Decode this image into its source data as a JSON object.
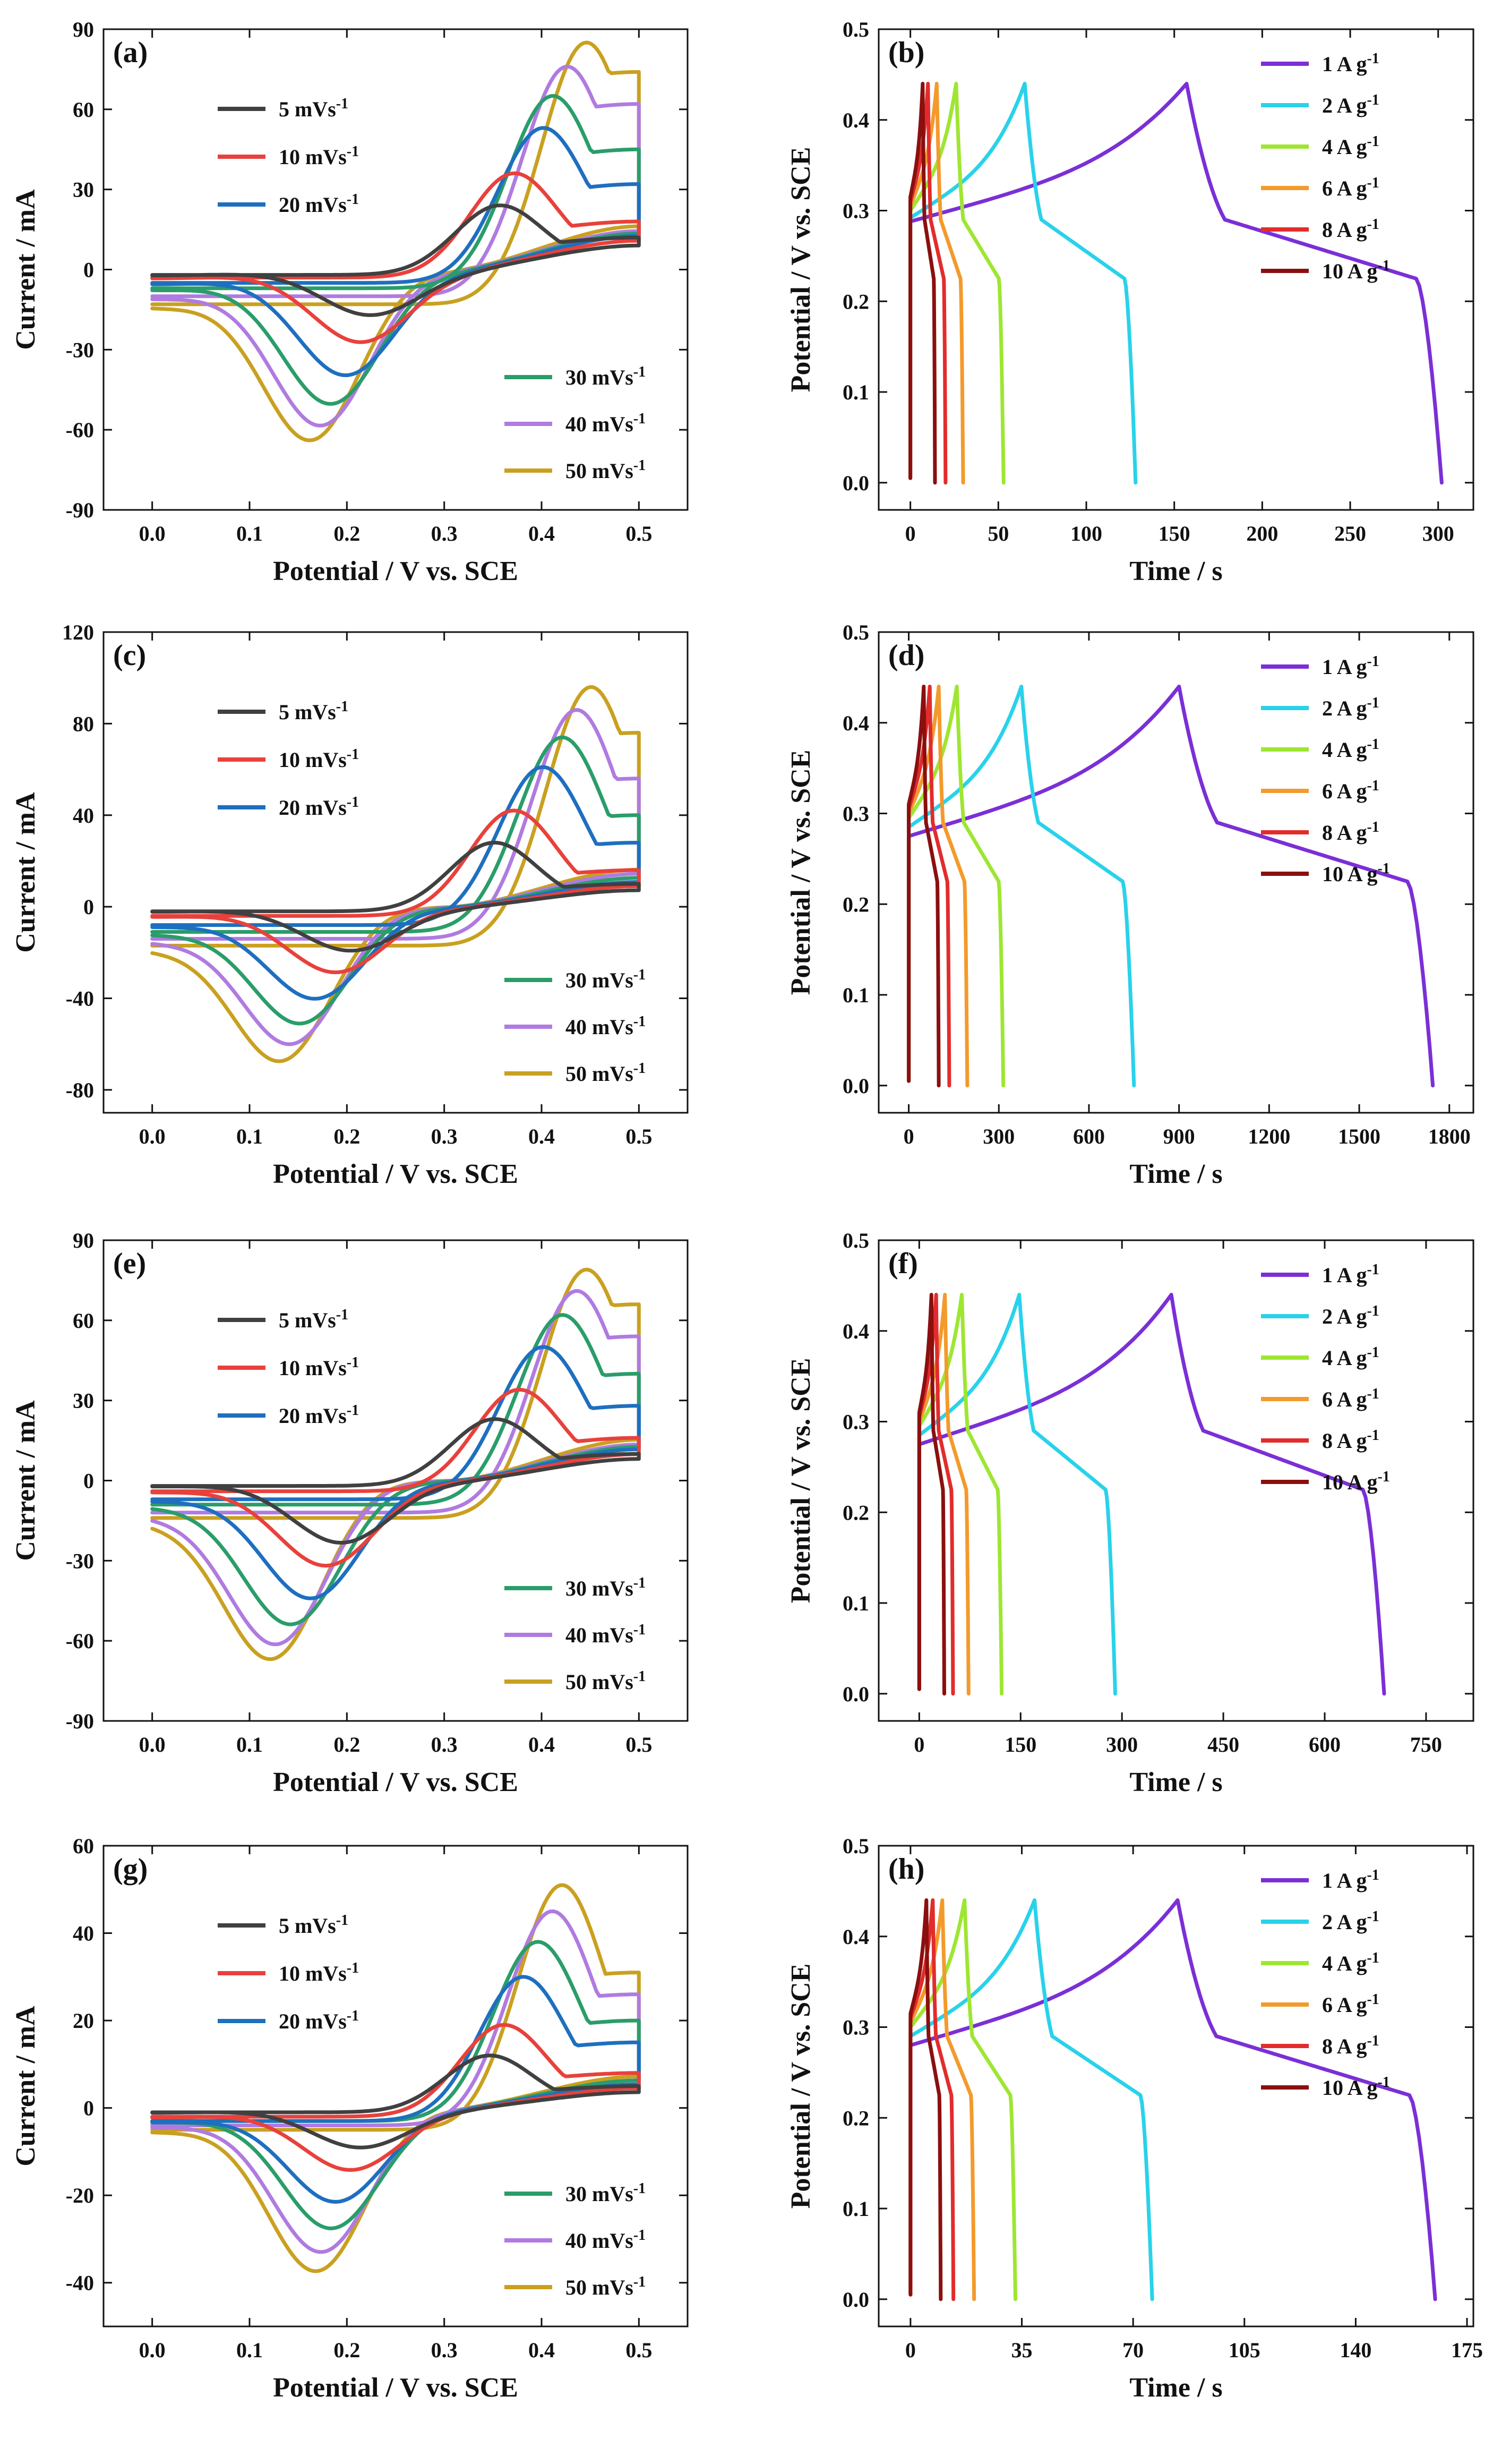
{
  "chart_data": [
    {
      "panel": "(a)",
      "type": "line",
      "variant": "cv",
      "xlabel": "Potential / V vs. SCE",
      "ylabel": "Current / mA",
      "xlim": [
        -0.05,
        0.55
      ],
      "ylim": [
        -90,
        90
      ],
      "xticks": [
        0.0,
        0.1,
        0.2,
        0.3,
        0.4,
        0.5
      ],
      "yticks": [
        -90,
        -60,
        -30,
        0,
        30,
        60,
        90
      ],
      "xtick_labels": [
        "0.0",
        "0.1",
        "0.2",
        "0.3",
        "0.4",
        "0.5"
      ],
      "ytick_labels": [
        "-90",
        "-60",
        "-30",
        "0",
        "30",
        "60",
        "90"
      ],
      "legend_groups": [
        [
          "5 mVs-1",
          "10 mVs-1",
          "20 mVs-1"
        ],
        [
          "30 mVs-1",
          "40 mVs-1",
          "50 mVs-1"
        ]
      ],
      "legend_placement": [
        "upper-left",
        "lower-right"
      ],
      "series": [
        {
          "name": "5 mVs-1",
          "color": "#404040",
          "end_high": 12,
          "end_low": 10,
          "v_start": -2,
          "ox_peak_x": 0.355,
          "ox_peak_y": 24,
          "red_peak_x": 0.225,
          "red_peak_y": -19
        },
        {
          "name": "10 mVs-1",
          "color": "#e8413c",
          "end_high": 18,
          "end_low": 12,
          "v_start": -3,
          "ox_peak_x": 0.37,
          "ox_peak_y": 36,
          "red_peak_x": 0.215,
          "red_peak_y": -30
        },
        {
          "name": "20 mVs-1",
          "color": "#1e6fbf",
          "end_high": 32,
          "end_low": 14,
          "v_start": -5,
          "ox_peak_x": 0.4,
          "ox_peak_y": 53,
          "red_peak_x": 0.2,
          "red_peak_y": -44
        },
        {
          "name": "30 mVs-1",
          "color": "#2a9d6a",
          "end_high": 45,
          "end_low": 15,
          "v_start": -7,
          "ox_peak_x": 0.41,
          "ox_peak_y": 65,
          "red_peak_x": 0.185,
          "red_peak_y": -56
        },
        {
          "name": "40 mVs-1",
          "color": "#b07be0",
          "end_high": 62,
          "end_low": 16,
          "v_start": -10,
          "ox_peak_x": 0.425,
          "ox_peak_y": 76,
          "red_peak_x": 0.175,
          "red_peak_y": -66
        },
        {
          "name": "50 mVs-1",
          "color": "#c9a020",
          "end_high": 74,
          "end_low": 18,
          "v_start": -13,
          "ox_peak_x": 0.445,
          "ox_peak_y": 85,
          "red_peak_x": 0.165,
          "red_peak_y": -73
        }
      ]
    },
    {
      "panel": "(b)",
      "type": "line",
      "variant": "gcd",
      "xlabel": "Time / s",
      "ylabel": "Potential / V vs. SCE",
      "xlim": [
        -18,
        320
      ],
      "ylim": [
        -0.03,
        0.5
      ],
      "xticks": [
        0,
        50,
        100,
        150,
        200,
        250,
        300
      ],
      "yticks": [
        0.0,
        0.1,
        0.2,
        0.3,
        0.4,
        0.5
      ],
      "xtick_labels": [
        "0",
        "50",
        "100",
        "150",
        "200",
        "250",
        "300"
      ],
      "ytick_labels": [
        "0.0",
        "0.1",
        "0.2",
        "0.3",
        "0.4",
        "0.5"
      ],
      "legend_placement": "upper-right",
      "series": [
        {
          "name": "1 A g-1",
          "color": "#7b2fd6",
          "t_peak": 157,
          "t_end": 302,
          "v_start": 0.288
        },
        {
          "name": "2 A g-1",
          "color": "#29d2ea",
          "t_peak": 65,
          "t_end": 128,
          "v_start": 0.292
        },
        {
          "name": "4 A g-1",
          "color": "#9ee632",
          "t_peak": 26,
          "t_end": 53,
          "v_start": 0.3
        },
        {
          "name": "6 A g-1",
          "color": "#f39a2c",
          "t_peak": 15,
          "t_end": 30,
          "v_start": 0.305
        },
        {
          "name": "8 A g-1",
          "color": "#e22c2c",
          "t_peak": 10,
          "t_end": 20,
          "v_start": 0.31
        },
        {
          "name": "10 A g-1",
          "color": "#8b0f0f",
          "t_peak": 7,
          "t_end": 14,
          "v_start": 0.315
        }
      ]
    },
    {
      "panel": "(c)",
      "type": "line",
      "variant": "cv",
      "xlabel": "Potential / V vs. SCE",
      "ylabel": "Current / mA",
      "xlim": [
        -0.05,
        0.55
      ],
      "ylim": [
        -90,
        120
      ],
      "xticks": [
        0.0,
        0.1,
        0.2,
        0.3,
        0.4,
        0.5
      ],
      "yticks": [
        -80,
        -40,
        0,
        40,
        80,
        120
      ],
      "xtick_labels": [
        "0.0",
        "0.1",
        "0.2",
        "0.3",
        "0.4",
        "0.5"
      ],
      "ytick_labels": [
        "-80",
        "-40",
        "0",
        "40",
        "80",
        "120"
      ],
      "legend_groups": [
        [
          "5 mVs-1",
          "10 mVs-1",
          "20 mVs-1"
        ],
        [
          "30 mVs-1",
          "40 mVs-1",
          "50 mVs-1"
        ]
      ],
      "legend_placement": [
        "upper-left",
        "lower-right"
      ],
      "series": [
        {
          "name": "5 mVs-1",
          "color": "#404040",
          "end_high": 10,
          "end_low": 8,
          "v_start": -2,
          "ox_peak_x": 0.35,
          "ox_peak_y": 28,
          "red_peak_x": 0.205,
          "red_peak_y": -21
        },
        {
          "name": "10 mVs-1",
          "color": "#e8413c",
          "end_high": 16,
          "end_low": 10,
          "v_start": -4,
          "ox_peak_x": 0.37,
          "ox_peak_y": 42,
          "red_peak_x": 0.19,
          "red_peak_y": -32
        },
        {
          "name": "20 mVs-1",
          "color": "#1e6fbf",
          "end_high": 28,
          "end_low": 12,
          "v_start": -8,
          "ox_peak_x": 0.4,
          "ox_peak_y": 61,
          "red_peak_x": 0.17,
          "red_peak_y": -46
        },
        {
          "name": "30 mVs-1",
          "color": "#2a9d6a",
          "end_high": 40,
          "end_low": 14,
          "v_start": -11,
          "ox_peak_x": 0.42,
          "ox_peak_y": 74,
          "red_peak_x": 0.155,
          "red_peak_y": -58
        },
        {
          "name": "40 mVs-1",
          "color": "#b07be0",
          "end_high": 56,
          "end_low": 16,
          "v_start": -14,
          "ox_peak_x": 0.435,
          "ox_peak_y": 86,
          "red_peak_x": 0.145,
          "red_peak_y": -68
        },
        {
          "name": "50 mVs-1",
          "color": "#c9a020",
          "end_high": 76,
          "end_low": 18,
          "v_start": -17,
          "ox_peak_x": 0.45,
          "ox_peak_y": 96,
          "red_peak_x": 0.135,
          "red_peak_y": -76
        }
      ]
    },
    {
      "panel": "(d)",
      "type": "line",
      "variant": "gcd",
      "xlabel": "Time / s",
      "ylabel": "Potential / V vs. SCE",
      "xlim": [
        -100,
        1880
      ],
      "ylim": [
        -0.03,
        0.5
      ],
      "xticks": [
        0,
        300,
        600,
        900,
        1200,
        1500,
        1800
      ],
      "yticks": [
        0.0,
        0.1,
        0.2,
        0.3,
        0.4,
        0.5
      ],
      "xtick_labels": [
        "0",
        "300",
        "600",
        "900",
        "1200",
        "1500",
        "1800"
      ],
      "ytick_labels": [
        "0.0",
        "0.1",
        "0.2",
        "0.3",
        "0.4",
        "0.5"
      ],
      "legend_placement": "upper-right",
      "series": [
        {
          "name": "1 A g-1",
          "color": "#7b2fd6",
          "t_peak": 900,
          "t_end": 1745,
          "v_start": 0.275
        },
        {
          "name": "2 A g-1",
          "color": "#29d2ea",
          "t_peak": 375,
          "t_end": 750,
          "v_start": 0.285
        },
        {
          "name": "4 A g-1",
          "color": "#9ee632",
          "t_peak": 160,
          "t_end": 315,
          "v_start": 0.295
        },
        {
          "name": "6 A g-1",
          "color": "#f39a2c",
          "t_peak": 100,
          "t_end": 195,
          "v_start": 0.3
        },
        {
          "name": "8 A g-1",
          "color": "#e22c2c",
          "t_peak": 70,
          "t_end": 135,
          "v_start": 0.305
        },
        {
          "name": "10 A g-1",
          "color": "#8b0f0f",
          "t_peak": 50,
          "t_end": 100,
          "v_start": 0.31
        }
      ]
    },
    {
      "panel": "(e)",
      "type": "line",
      "variant": "cv",
      "xlabel": "Potential / V vs. SCE",
      "ylabel": "Current / mA",
      "xlim": [
        -0.05,
        0.55
      ],
      "ylim": [
        -90,
        90
      ],
      "xticks": [
        0.0,
        0.1,
        0.2,
        0.3,
        0.4,
        0.5
      ],
      "yticks": [
        -90,
        -60,
        -30,
        0,
        30,
        60,
        90
      ],
      "xtick_labels": [
        "0.0",
        "0.1",
        "0.2",
        "0.3",
        "0.4",
        "0.5"
      ],
      "ytick_labels": [
        "-90",
        "-60",
        "-30",
        "0",
        "30",
        "60",
        "90"
      ],
      "legend_groups": [
        [
          "5 mVs-1",
          "10 mVs-1",
          "20 mVs-1"
        ],
        [
          "30 mVs-1",
          "40 mVs-1",
          "50 mVs-1"
        ]
      ],
      "legend_placement": [
        "upper-left",
        "lower-right"
      ],
      "series": [
        {
          "name": "5 mVs-1",
          "color": "#404040",
          "end_high": 10,
          "end_low": 9,
          "v_start": -2,
          "ox_peak_x": 0.35,
          "ox_peak_y": 23,
          "red_peak_x": 0.195,
          "red_peak_y": -25
        },
        {
          "name": "10 mVs-1",
          "color": "#e8413c",
          "end_high": 16,
          "end_low": 11,
          "v_start": -4,
          "ox_peak_x": 0.375,
          "ox_peak_y": 34,
          "red_peak_x": 0.18,
          "red_peak_y": -35
        },
        {
          "name": "20 mVs-1",
          "color": "#1e6fbf",
          "end_high": 28,
          "end_low": 13,
          "v_start": -7,
          "ox_peak_x": 0.4,
          "ox_peak_y": 50,
          "red_peak_x": 0.165,
          "red_peak_y": -49
        },
        {
          "name": "30 mVs-1",
          "color": "#2a9d6a",
          "end_high": 40,
          "end_low": 14,
          "v_start": -9,
          "ox_peak_x": 0.42,
          "ox_peak_y": 62,
          "red_peak_x": 0.145,
          "red_peak_y": -59
        },
        {
          "name": "40 mVs-1",
          "color": "#b07be0",
          "end_high": 54,
          "end_low": 15,
          "v_start": -12,
          "ox_peak_x": 0.435,
          "ox_peak_y": 71,
          "red_peak_x": 0.13,
          "red_peak_y": -67
        },
        {
          "name": "50 mVs-1",
          "color": "#c9a020",
          "end_high": 66,
          "end_low": 17,
          "v_start": -14,
          "ox_peak_x": 0.445,
          "ox_peak_y": 79,
          "red_peak_x": 0.125,
          "red_peak_y": -73
        }
      ]
    },
    {
      "panel": "(f)",
      "type": "line",
      "variant": "gcd",
      "xlabel": "Time / s",
      "ylabel": "Potential / V vs. SCE",
      "xlim": [
        -60,
        820
      ],
      "ylim": [
        -0.03,
        0.5
      ],
      "xticks": [
        0,
        150,
        300,
        450,
        600,
        750
      ],
      "yticks": [
        0.0,
        0.1,
        0.2,
        0.3,
        0.4,
        0.5
      ],
      "xtick_labels": [
        "0",
        "150",
        "300",
        "450",
        "600",
        "750"
      ],
      "ytick_labels": [
        "0.0",
        "0.1",
        "0.2",
        "0.3",
        "0.4",
        "0.5"
      ],
      "legend_placement": "upper-right",
      "series": [
        {
          "name": "1 A g-1",
          "color": "#7b2fd6",
          "t_peak": 373,
          "t_end": 688,
          "v_start": 0.275
        },
        {
          "name": "2 A g-1",
          "color": "#29d2ea",
          "t_peak": 148,
          "t_end": 290,
          "v_start": 0.285
        },
        {
          "name": "4 A g-1",
          "color": "#9ee632",
          "t_peak": 63,
          "t_end": 122,
          "v_start": 0.295
        },
        {
          "name": "6 A g-1",
          "color": "#f39a2c",
          "t_peak": 38,
          "t_end": 73,
          "v_start": 0.3
        },
        {
          "name": "8 A g-1",
          "color": "#e22c2c",
          "t_peak": 25,
          "t_end": 50,
          "v_start": 0.305
        },
        {
          "name": "10 A g-1",
          "color": "#8b0f0f",
          "t_peak": 18,
          "t_end": 37,
          "v_start": 0.31
        }
      ]
    },
    {
      "panel": "(g)",
      "type": "line",
      "variant": "cv",
      "xlabel": "Potential / V vs. SCE",
      "ylabel": "Current / mA",
      "xlim": [
        -0.05,
        0.55
      ],
      "ylim": [
        -50,
        60
      ],
      "xticks": [
        0.0,
        0.1,
        0.2,
        0.3,
        0.4,
        0.5
      ],
      "yticks": [
        -40,
        -20,
        0,
        20,
        40,
        60
      ],
      "xtick_labels": [
        "0.0",
        "0.1",
        "0.2",
        "0.3",
        "0.4",
        "0.5"
      ],
      "ytick_labels": [
        "-40",
        "-20",
        "0",
        "20",
        "40",
        "60"
      ],
      "legend_groups": [
        [
          "5 mVs-1",
          "10 mVs-1",
          "20 mVs-1"
        ],
        [
          "30 mVs-1",
          "40 mVs-1",
          "50 mVs-1"
        ]
      ],
      "legend_placement": [
        "upper-left",
        "lower-right"
      ],
      "series": [
        {
          "name": "5 mVs-1",
          "color": "#404040",
          "end_high": 5,
          "end_low": 4,
          "v_start": -1,
          "ox_peak_x": 0.345,
          "ox_peak_y": 12,
          "red_peak_x": 0.215,
          "red_peak_y": -10
        },
        {
          "name": "10 mVs-1",
          "color": "#e8413c",
          "end_high": 8,
          "end_low": 5,
          "v_start": -2,
          "ox_peak_x": 0.36,
          "ox_peak_y": 19,
          "red_peak_x": 0.205,
          "red_peak_y": -16
        },
        {
          "name": "20 mVs-1",
          "color": "#1e6fbf",
          "end_high": 15,
          "end_low": 6,
          "v_start": -3,
          "ox_peak_x": 0.38,
          "ox_peak_y": 30,
          "red_peak_x": 0.19,
          "red_peak_y": -24
        },
        {
          "name": "30 mVs-1",
          "color": "#2a9d6a",
          "end_high": 20,
          "end_low": 7,
          "v_start": -3,
          "ox_peak_x": 0.395,
          "ox_peak_y": 38,
          "red_peak_x": 0.185,
          "red_peak_y": -30
        },
        {
          "name": "40 mVs-1",
          "color": "#b07be0",
          "end_high": 26,
          "end_low": 7,
          "v_start": -4,
          "ox_peak_x": 0.41,
          "ox_peak_y": 45,
          "red_peak_x": 0.175,
          "red_peak_y": -36
        },
        {
          "name": "50 mVs-1",
          "color": "#c9a020",
          "end_high": 31,
          "end_low": 8,
          "v_start": -5,
          "ox_peak_x": 0.42,
          "ox_peak_y": 51,
          "red_peak_x": 0.17,
          "red_peak_y": -41
        }
      ]
    },
    {
      "panel": "(h)",
      "type": "line",
      "variant": "gcd",
      "xlabel": "Time / s",
      "ylabel": "Potential / V vs. SCE",
      "xlim": [
        -10,
        177
      ],
      "ylim": [
        -0.03,
        0.5
      ],
      "xticks": [
        0,
        35,
        70,
        105,
        140,
        175
      ],
      "yticks": [
        0.0,
        0.1,
        0.2,
        0.3,
        0.4,
        0.5
      ],
      "xtick_labels": [
        "0",
        "35",
        "70",
        "105",
        "140",
        "175"
      ],
      "ytick_labels": [
        "0.0",
        "0.1",
        "0.2",
        "0.3",
        "0.4",
        "0.5"
      ],
      "legend_placement": "upper-right",
      "series": [
        {
          "name": "1 A g-1",
          "color": "#7b2fd6",
          "t_peak": 84,
          "t_end": 165,
          "v_start": 0.28
        },
        {
          "name": "2 A g-1",
          "color": "#29d2ea",
          "t_peak": 39,
          "t_end": 76,
          "v_start": 0.29
        },
        {
          "name": "4 A g-1",
          "color": "#9ee632",
          "t_peak": 17,
          "t_end": 33,
          "v_start": 0.3
        },
        {
          "name": "6 A g-1",
          "color": "#f39a2c",
          "t_peak": 10,
          "t_end": 20,
          "v_start": 0.305
        },
        {
          "name": "8 A g-1",
          "color": "#e22c2c",
          "t_peak": 7,
          "t_end": 13.5,
          "v_start": 0.31
        },
        {
          "name": "10 A g-1",
          "color": "#8b0f0f",
          "t_peak": 5,
          "t_end": 9.5,
          "v_start": 0.315
        }
      ]
    }
  ]
}
